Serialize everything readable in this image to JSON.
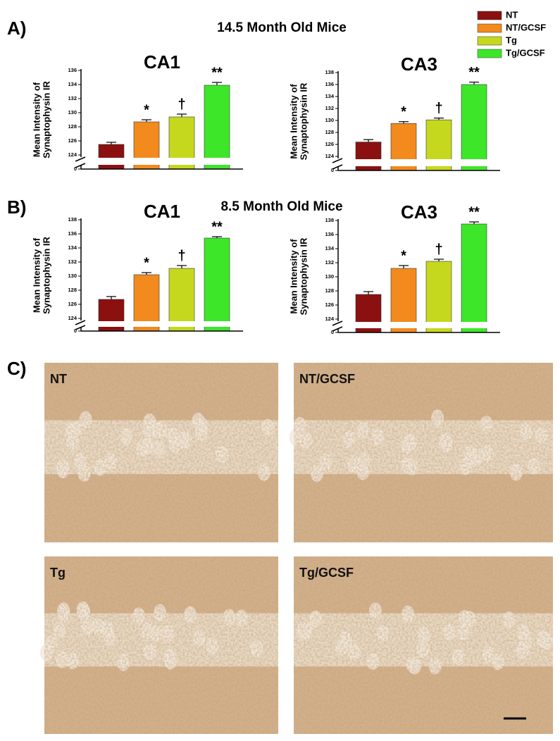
{
  "panels": [
    {
      "label": "A)",
      "title": "14.5 Month Old Mice"
    },
    {
      "label": "B)",
      "title": "8.5 Month Old Mice"
    },
    {
      "label": "C)"
    }
  ],
  "legend": [
    {
      "name": "NT",
      "color": "#8b1111"
    },
    {
      "name": "NT/GCSF",
      "color": "#f28a1e"
    },
    {
      "name": "Tg",
      "color": "#c6d81e"
    },
    {
      "name": "Tg/GCSF",
      "color": "#3ee62a"
    }
  ],
  "legend_position": "top-right",
  "chart_data": [
    {
      "type": "bar",
      "title": "CA1",
      "ylabel": [
        "Mean Intensity of",
        "Synaptophysin IR"
      ],
      "values": [
        125.5,
        128.7,
        129.4,
        133.9
      ],
      "errors": [
        0.3,
        0.3,
        0.4,
        0.4
      ],
      "annotations": [
        null,
        "*",
        "†",
        "**"
      ],
      "ylim": [
        124,
        136
      ],
      "yticks": [
        124,
        126,
        128,
        130,
        132,
        134,
        136
      ],
      "break_tick": 0
    },
    {
      "type": "bar",
      "title": "CA3",
      "ylabel": [
        "Mean Intensity of",
        "Synaptophysin IR"
      ],
      "values": [
        126.4,
        129.5,
        130.1,
        136.0
      ],
      "errors": [
        0.4,
        0.3,
        0.3,
        0.4
      ],
      "annotations": [
        null,
        "*",
        "†",
        "**"
      ],
      "ylim": [
        124,
        138
      ],
      "yticks": [
        124,
        126,
        128,
        130,
        132,
        134,
        136,
        138
      ],
      "break_tick": 0
    },
    {
      "type": "bar",
      "title": "CA1",
      "ylabel": [
        "Mean Intensity of",
        "Synaptophysin IR"
      ],
      "values": [
        126.7,
        130.2,
        131.1,
        135.4
      ],
      "errors": [
        0.4,
        0.3,
        0.4,
        0.2
      ],
      "annotations": [
        null,
        "*",
        "†",
        "**"
      ],
      "ylim": [
        124,
        138
      ],
      "yticks": [
        124,
        126,
        128,
        130,
        132,
        134,
        136,
        138
      ],
      "break_tick": 0
    },
    {
      "type": "bar",
      "title": "CA3",
      "ylabel": [
        "Mean Intensity of",
        "Synaptophysin IR"
      ],
      "values": [
        127.5,
        131.2,
        132.2,
        137.5
      ],
      "errors": [
        0.4,
        0.4,
        0.3,
        0.3
      ],
      "annotations": [
        null,
        "*",
        "†",
        "**"
      ],
      "ylim": [
        124,
        138
      ],
      "yticks": [
        124,
        126,
        128,
        130,
        132,
        134,
        136,
        138
      ],
      "break_tick": 0
    }
  ],
  "micrographs": [
    "NT",
    "NT/GCSF",
    "Tg",
    "Tg/GCSF"
  ]
}
